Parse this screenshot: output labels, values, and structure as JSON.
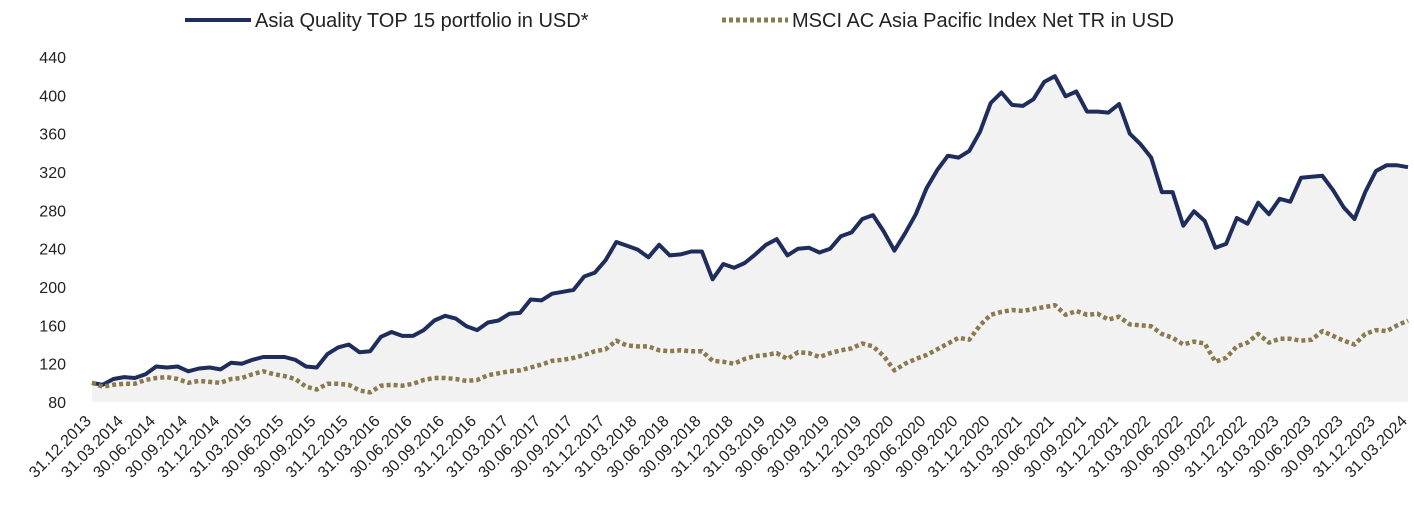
{
  "chart_data": {
    "type": "line",
    "categories": [
      "31.12.2013",
      null,
      null,
      "31.03.2014",
      null,
      null,
      "30.06.2014",
      null,
      null,
      "30.09.2014",
      null,
      null,
      "31.12.2014",
      null,
      null,
      "31.03.2015",
      null,
      null,
      "30.06.2015",
      null,
      null,
      "30.09.2015",
      null,
      null,
      "31.12.2015",
      null,
      null,
      "31.03.2016",
      null,
      null,
      "30.06.2016",
      null,
      null,
      "30.09.2016",
      null,
      null,
      "31.12.2016",
      null,
      null,
      "31.03.2017",
      null,
      null,
      "30.06.2017",
      null,
      null,
      "30.09.2017",
      null,
      null,
      "31.12.2017",
      null,
      null,
      "31.03.2018",
      null,
      null,
      "30.06.2018",
      null,
      null,
      "30.09.2018",
      null,
      null,
      "31.12.2018",
      null,
      null,
      "31.03.2019",
      null,
      null,
      "30.06.2019",
      null,
      null,
      "30.09.2019",
      null,
      null,
      "31.12.2019",
      null,
      null,
      "31.03.2020",
      null,
      null,
      "30.06.2020",
      null,
      null,
      "30.09.2020",
      null,
      null,
      "31.12.2020",
      null,
      null,
      "31.03.2021",
      null,
      null,
      "30.06.2021",
      null,
      null,
      "30.09.2021",
      null,
      null,
      "31.12.2021",
      null,
      null,
      "31.03.2022",
      null,
      null,
      "30.06.2022",
      null,
      null,
      "30.09.2022",
      null,
      null,
      "31.12.2022",
      null,
      null,
      "31.03.2023",
      null,
      null,
      "30.06.2023",
      null,
      null,
      "30.09.2023",
      null,
      null,
      "31.12.2023",
      null,
      null,
      "31.03.2024"
    ],
    "series": [
      {
        "name": "Asia Quality TOP 15 portfolio in USD*",
        "color": "#1f2d5c",
        "style": "solid",
        "fill": "#f2f2f2",
        "values": [
          100,
          98,
          104,
          106,
          105,
          109,
          117,
          116,
          117,
          112,
          115,
          116,
          114,
          121,
          120,
          124,
          127,
          127,
          127,
          124,
          117,
          116,
          130,
          137,
          140,
          132,
          133,
          148,
          153,
          149,
          149,
          155,
          165,
          170,
          167,
          159,
          155,
          163,
          165,
          172,
          173,
          187,
          186,
          193,
          195,
          197,
          211,
          215,
          228,
          247,
          243,
          239,
          231,
          244,
          233,
          234,
          237,
          237,
          208,
          224,
          220,
          225,
          234,
          244,
          250,
          233,
          240,
          241,
          236,
          240,
          253,
          257,
          271,
          275,
          258,
          238,
          256,
          276,
          303,
          322,
          337,
          335,
          342,
          362,
          392,
          403,
          390,
          389,
          396,
          414,
          420,
          399,
          404,
          383,
          383,
          382,
          391,
          360,
          349,
          335,
          299,
          299,
          264,
          279,
          269,
          241,
          245,
          272,
          266,
          288,
          276,
          292,
          289,
          314,
          315,
          316,
          301,
          283,
          271,
          299,
          321,
          327,
          327,
          325
        ]
      },
      {
        "name": "MSCI AC Asia Pacific Index Net TR in USD",
        "color": "#8c7a4f",
        "style": "dotted",
        "values": [
          100,
          96,
          98,
          99,
          99,
          103,
          105,
          106,
          104,
          100,
          102,
          101,
          100,
          104,
          105,
          109,
          112,
          109,
          107,
          104,
          96,
          93,
          99,
          99,
          98,
          92,
          90,
          97,
          98,
          97,
          99,
          103,
          105,
          105,
          104,
          102,
          103,
          108,
          110,
          112,
          113,
          116,
          119,
          123,
          124,
          126,
          129,
          133,
          135,
          144,
          139,
          138,
          138,
          134,
          133,
          134,
          133,
          133,
          123,
          122,
          120,
          125,
          128,
          129,
          131,
          125,
          132,
          131,
          127,
          131,
          134,
          136,
          141,
          138,
          128,
          113,
          120,
          125,
          129,
          135,
          141,
          147,
          145,
          160,
          171,
          174,
          176,
          175,
          177,
          179,
          181,
          171,
          175,
          171,
          172,
          166,
          169,
          161,
          160,
          159,
          151,
          147,
          140,
          143,
          141,
          122,
          126,
          138,
          142,
          151,
          142,
          146,
          146,
          144,
          145,
          154,
          149,
          144,
          140,
          151,
          155,
          154,
          160,
          165
        ]
      }
    ],
    "ylim": [
      80,
      440
    ],
    "yticks": [
      80,
      120,
      160,
      200,
      240,
      280,
      320,
      360,
      400,
      440
    ],
    "grid": false,
    "legend": "top"
  }
}
